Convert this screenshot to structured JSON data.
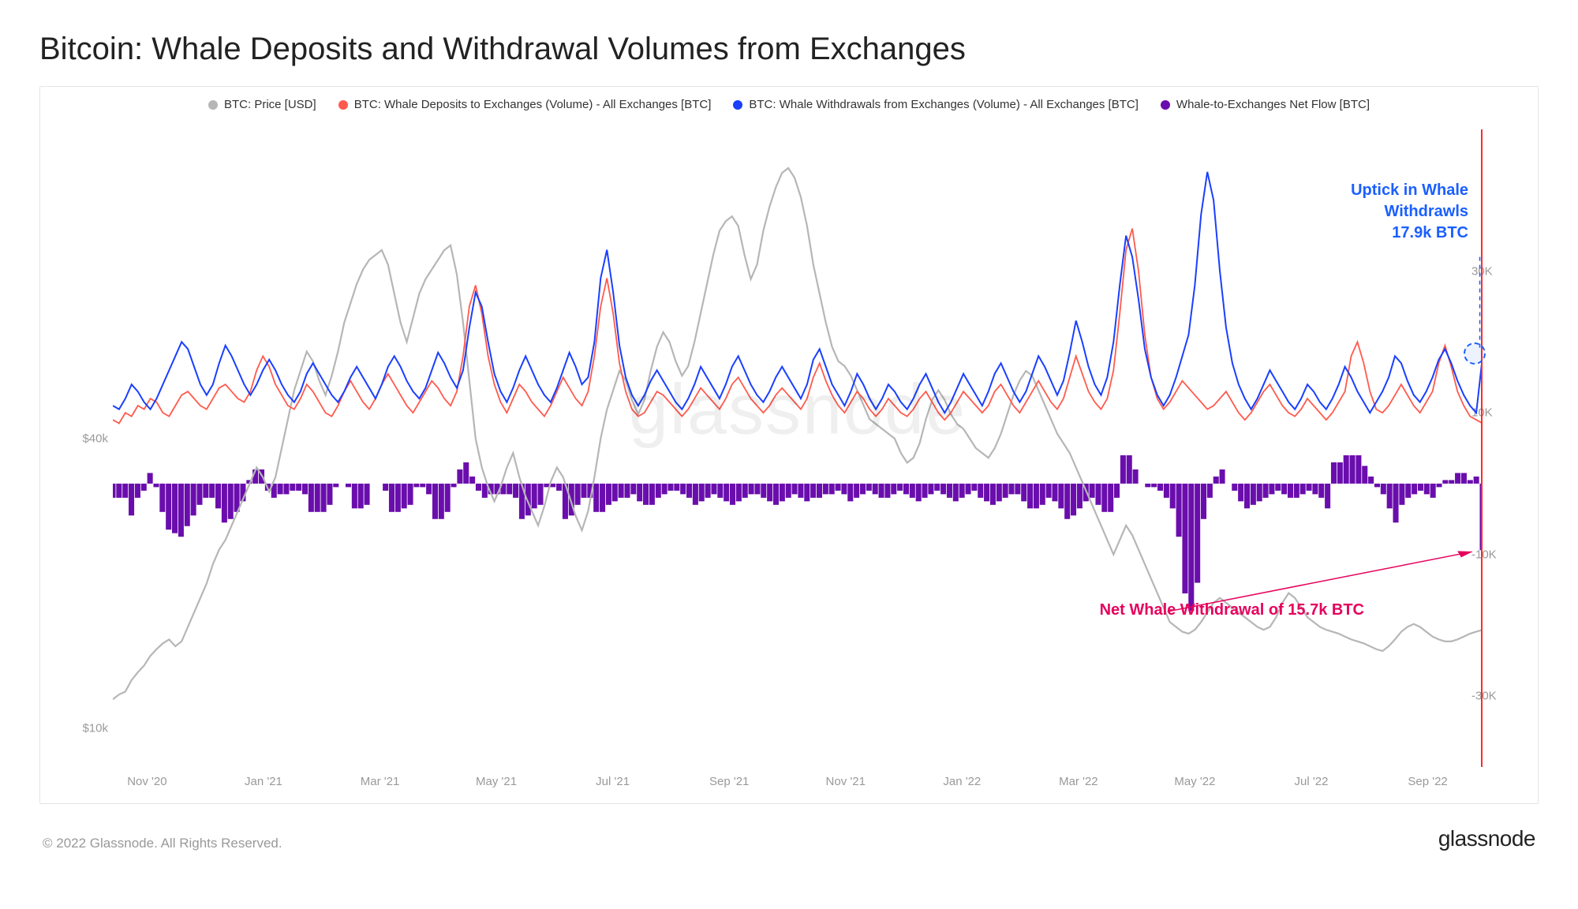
{
  "title": "Bitcoin: Whale Deposits and Withdrawal Volumes from Exchanges",
  "copyright": "© 2022 Glassnode. All Rights Reserved.",
  "brand": "glassnode",
  "watermark": "glassnode",
  "legend": [
    {
      "label": "BTC: Price [USD]",
      "color": "#b6b6b6"
    },
    {
      "label": "BTC: Whale Deposits to Exchanges (Volume) - All Exchanges [BTC]",
      "color": "#ff5a4d"
    },
    {
      "label": "BTC: Whale Withdrawals from Exchanges (Volume) - All Exchanges [BTC]",
      "color": "#1a3fff"
    },
    {
      "label": "Whale-to-Exchanges Net Flow [BTC]",
      "color": "#6a0dad"
    }
  ],
  "annotations": {
    "blue": {
      "line1": "Uptick in Whale",
      "line2": "Withdrawls",
      "line3": "17.9k BTC",
      "color": "#1a5fff"
    },
    "red": {
      "text": "Net Whale Withdrawal of 15.7k BTC",
      "color": "#e6005c"
    }
  },
  "chart": {
    "type": "combo-line-bar",
    "background_color": "#ffffff",
    "border_color": "#e4e4e4",
    "left_axis": {
      "label_color": "#999999",
      "font_size": 15,
      "min": 6000,
      "max": 72000,
      "ticks": [
        {
          "value": 10000,
          "label": "$10k"
        },
        {
          "value": 40000,
          "label": "$40k"
        }
      ]
    },
    "right_axis": {
      "label_color": "#999999",
      "font_size": 15,
      "min": -40000,
      "max": 50000,
      "ticks": [
        {
          "value": -30000,
          "label": "-30K"
        },
        {
          "value": -10000,
          "label": "-10K"
        },
        {
          "value": 10000,
          "label": "10K"
        },
        {
          "value": 30000,
          "label": "30K"
        }
      ]
    },
    "x_axis": {
      "labels": [
        "Nov '20",
        "Jan '21",
        "Mar '21",
        "May '21",
        "Jul '21",
        "Sep '21",
        "Nov '21",
        "Jan '22",
        "Mar '22",
        "May '22",
        "Jul '22",
        "Sep '22"
      ],
      "positions_pct": [
        2.5,
        11,
        19.5,
        28,
        36.5,
        45,
        53.5,
        62,
        70.5,
        79,
        87.5,
        96
      ]
    },
    "vline_color": "#ff2a2a",
    "series": {
      "price": {
        "color": "#b6b6b6",
        "width": 2.2,
        "axis": "left",
        "data": [
          13000,
          13500,
          13800,
          15000,
          15800,
          16500,
          17500,
          18200,
          18800,
          19200,
          18500,
          19000,
          20500,
          22000,
          23500,
          25000,
          27000,
          28500,
          29500,
          31000,
          32500,
          34000,
          35500,
          37000,
          36000,
          34500,
          36000,
          39000,
          42000,
          45000,
          47000,
          49000,
          48000,
          46000,
          44500,
          46500,
          49000,
          52000,
          54000,
          56000,
          57500,
          58500,
          59000,
          59500,
          58000,
          55000,
          52000,
          50000,
          52500,
          55000,
          56500,
          57500,
          58500,
          59500,
          60000,
          57000,
          52000,
          46000,
          40000,
          37000,
          35000,
          33500,
          35000,
          37000,
          38500,
          36000,
          34000,
          32500,
          31000,
          33000,
          35500,
          37000,
          36000,
          34000,
          32000,
          30500,
          32500,
          36000,
          40000,
          43000,
          45000,
          47000,
          46000,
          44000,
          42500,
          44000,
          47000,
          49500,
          51000,
          50000,
          48000,
          46500,
          47500,
          50000,
          53000,
          56000,
          59000,
          61500,
          62500,
          63000,
          62000,
          59000,
          56500,
          58000,
          61500,
          64000,
          66000,
          67500,
          68000,
          67000,
          65000,
          62000,
          58000,
          55000,
          52000,
          49500,
          48000,
          47500,
          46500,
          45000,
          43500,
          42000,
          41500,
          41000,
          40500,
          40000,
          38500,
          37500,
          38000,
          39500,
          42000,
          44000,
          45000,
          44000,
          42500,
          41500,
          41000,
          40000,
          39000,
          38500,
          38000,
          39000,
          40500,
          42500,
          44500,
          46000,
          47000,
          46500,
          45000,
          43500,
          42000,
          40500,
          39500,
          38500,
          37000,
          35500,
          34000,
          32500,
          31000,
          29500,
          28000,
          29500,
          31000,
          30000,
          28500,
          27000,
          25500,
          24000,
          22500,
          21000,
          20500,
          20000,
          19800,
          20200,
          21000,
          22000,
          23000,
          23500,
          23000,
          22500,
          22000,
          21500,
          21000,
          20500,
          20200,
          20500,
          21500,
          23000,
          24000,
          23500,
          22500,
          21500,
          21000,
          20500,
          20200,
          20000,
          19800,
          19500,
          19200,
          19000,
          18800,
          18500,
          18200,
          18000,
          18500,
          19200,
          20000,
          20500,
          20800,
          20500,
          20000,
          19500,
          19200,
          19000,
          19000,
          19200,
          19500,
          19800,
          20000,
          20200
        ]
      },
      "deposits": {
        "color": "#ff5a4d",
        "width": 1.8,
        "axis": "right",
        "data": [
          9000,
          8500,
          10000,
          9500,
          11000,
          10500,
          12000,
          11500,
          10000,
          9500,
          11000,
          12500,
          13000,
          12000,
          11000,
          10500,
          12000,
          13500,
          14000,
          13000,
          12000,
          11500,
          13000,
          16000,
          18000,
          16500,
          14000,
          12500,
          11000,
          10500,
          12000,
          14000,
          13000,
          11500,
          10000,
          9500,
          11000,
          13000,
          14500,
          13000,
          11500,
          10500,
          12000,
          14000,
          15500,
          14000,
          12500,
          11000,
          10000,
          11500,
          13000,
          14500,
          13500,
          12000,
          11000,
          13000,
          18000,
          25000,
          28000,
          24000,
          18000,
          14000,
          11500,
          10000,
          12000,
          14000,
          13000,
          11500,
          10500,
          9500,
          11000,
          13000,
          15000,
          13500,
          12000,
          11000,
          13000,
          18000,
          25000,
          29000,
          24000,
          17000,
          13000,
          10500,
          9500,
          10000,
          11500,
          13000,
          12500,
          11500,
          10500,
          9500,
          10500,
          12000,
          13500,
          12500,
          11500,
          10500,
          12000,
          14000,
          15000,
          13500,
          12000,
          11000,
          10000,
          11000,
          12500,
          13500,
          12500,
          11500,
          10500,
          12000,
          15000,
          17000,
          14500,
          12500,
          11000,
          10000,
          11500,
          13000,
          12000,
          10500,
          9500,
          10500,
          12000,
          11000,
          10000,
          9500,
          10500,
          12000,
          13000,
          11500,
          10000,
          9000,
          10000,
          11500,
          13000,
          12000,
          11000,
          10000,
          11000,
          13000,
          14000,
          12500,
          11000,
          10000,
          11500,
          13000,
          14500,
          13000,
          11500,
          10500,
          12000,
          15000,
          18000,
          15500,
          13000,
          11500,
          10500,
          12000,
          16000,
          24000,
          33000,
          36000,
          30000,
          21000,
          15000,
          12000,
          10500,
          11500,
          13000,
          14500,
          13500,
          12500,
          11500,
          10500,
          11000,
          12000,
          13000,
          11500,
          10000,
          9000,
          10000,
          11500,
          13000,
          14000,
          12500,
          11000,
          10000,
          9500,
          10500,
          12000,
          11000,
          10000,
          9000,
          10000,
          11500,
          13000,
          18000,
          20000,
          17000,
          13000,
          10500,
          10000,
          11000,
          12500,
          14000,
          12500,
          11000,
          10000,
          11500,
          13000,
          17000,
          19500,
          16500,
          13000,
          11000,
          9500,
          9000,
          8500
        ]
      },
      "withdrawals": {
        "color": "#1a3fff",
        "width": 2.0,
        "axis": "right",
        "data": [
          11000,
          10500,
          12000,
          14000,
          13000,
          11500,
          10500,
          12000,
          14000,
          16000,
          18000,
          20000,
          19000,
          16500,
          14000,
          12500,
          14000,
          17000,
          19500,
          18000,
          16000,
          14000,
          12500,
          14000,
          16000,
          17500,
          16000,
          14000,
          12500,
          11500,
          13000,
          15500,
          17000,
          15500,
          14000,
          12500,
          11500,
          13000,
          15000,
          16500,
          15000,
          13500,
          12000,
          14000,
          16500,
          18000,
          16500,
          14500,
          13000,
          12000,
          13500,
          16000,
          18500,
          17000,
          15000,
          13500,
          16000,
          22000,
          27000,
          25000,
          20000,
          15500,
          13000,
          11500,
          13500,
          16000,
          18000,
          16000,
          14000,
          12500,
          11500,
          13500,
          16000,
          18500,
          16500,
          14000,
          15000,
          20000,
          29000,
          33000,
          27000,
          19500,
          15000,
          12500,
          11000,
          12500,
          14500,
          16000,
          14500,
          13000,
          11500,
          10500,
          12000,
          14000,
          16500,
          15000,
          13500,
          12000,
          14000,
          16500,
          18000,
          16000,
          14000,
          12500,
          11500,
          13000,
          15000,
          16500,
          15000,
          13500,
          12000,
          14000,
          17500,
          19000,
          16500,
          14000,
          12500,
          11000,
          13000,
          15500,
          14000,
          12000,
          10500,
          12000,
          14000,
          13000,
          11500,
          10500,
          12000,
          14000,
          15500,
          13500,
          11500,
          10000,
          11500,
          13500,
          15500,
          14000,
          12500,
          11000,
          13000,
          15500,
          17000,
          15000,
          13000,
          11500,
          13000,
          15500,
          18000,
          16500,
          14500,
          12500,
          14500,
          18500,
          23000,
          20000,
          16500,
          14000,
          12500,
          15000,
          20000,
          28000,
          35000,
          32000,
          26000,
          19000,
          15000,
          12500,
          11000,
          12500,
          15000,
          18000,
          21000,
          28000,
          38000,
          44000,
          40000,
          30000,
          22000,
          17000,
          14000,
          12000,
          10500,
          12000,
          14000,
          16000,
          14500,
          13000,
          11500,
          10500,
          12000,
          14000,
          13000,
          11500,
          10500,
          12000,
          14000,
          16500,
          15000,
          13000,
          11500,
          10000,
          11500,
          13000,
          15000,
          18000,
          17000,
          14500,
          12500,
          11500,
          13000,
          15000,
          17500,
          19000,
          17000,
          14500,
          12500,
          11000,
          10000,
          17900
        ]
      },
      "netflow_bars": {
        "color": "#6a0dad",
        "axis": "right",
        "data": [
          -2000,
          -2000,
          -2000,
          -4500,
          -2000,
          -1000,
          1500,
          -500,
          -4000,
          -6500,
          -7000,
          -7500,
          -6000,
          -4500,
          -3000,
          -2000,
          -2000,
          -3500,
          -5500,
          -5000,
          -4000,
          -2500,
          500,
          2000,
          2000,
          -1000,
          -2000,
          -1500,
          -1500,
          -1000,
          -1000,
          -1500,
          -4000,
          -4000,
          -4000,
          -3000,
          -500,
          0,
          -500,
          -3500,
          -3500,
          -3000,
          0,
          0,
          -1000,
          -4000,
          -4000,
          -3500,
          -3000,
          -500,
          -500,
          -1500,
          -5000,
          -5000,
          -4000,
          -500,
          2000,
          3000,
          1000,
          -1000,
          -2000,
          -1500,
          -1500,
          -1500,
          -1500,
          -2000,
          -5000,
          -4500,
          -3500,
          -3000,
          -500,
          -500,
          -1000,
          -5000,
          -4500,
          -3000,
          -2000,
          -2000,
          -4000,
          -4000,
          -3000,
          -2500,
          -2000,
          -2000,
          -1500,
          -2500,
          -3000,
          -3000,
          -2000,
          -1500,
          -1000,
          -1000,
          -1500,
          -2000,
          -3000,
          -2500,
          -2000,
          -1500,
          -2000,
          -2500,
          -3000,
          -2500,
          -2000,
          -1500,
          -1500,
          -2000,
          -2500,
          -3000,
          -2500,
          -2000,
          -1500,
          -2000,
          -2500,
          -2000,
          -2000,
          -1500,
          -1500,
          -1000,
          -1500,
          -2500,
          -2000,
          -1500,
          -1000,
          -1500,
          -2000,
          -2000,
          -1500,
          -1000,
          -1500,
          -2000,
          -2500,
          -2000,
          -1500,
          -1000,
          -1500,
          -2000,
          -2500,
          -2000,
          -1500,
          -1000,
          -2000,
          -2500,
          -3000,
          -2500,
          -2000,
          -1500,
          -1500,
          -2500,
          -3500,
          -3500,
          -3000,
          -2000,
          -2500,
          -3500,
          -5000,
          -4500,
          -3500,
          -2500,
          -2000,
          -3000,
          -4000,
          -4000,
          -2000,
          4000,
          4000,
          2000,
          0,
          -500,
          -500,
          -1000,
          -2000,
          -3500,
          -7500,
          -15500,
          -18000,
          -14000,
          -5000,
          -2000,
          1000,
          2000,
          0,
          -1000,
          -2500,
          -3500,
          -3000,
          -2500,
          -2000,
          -1500,
          -1000,
          -1500,
          -2000,
          -2000,
          -1500,
          -1000,
          -1500,
          -2000,
          -3500,
          3000,
          3000,
          4000,
          4000,
          4000,
          2500,
          1000,
          -500,
          -1500,
          -3500,
          -5500,
          -3000,
          -2000,
          -1500,
          -1000,
          -1500,
          -2000,
          -500,
          500,
          500,
          1500,
          1500,
          500,
          1000,
          -9400
        ]
      }
    }
  }
}
